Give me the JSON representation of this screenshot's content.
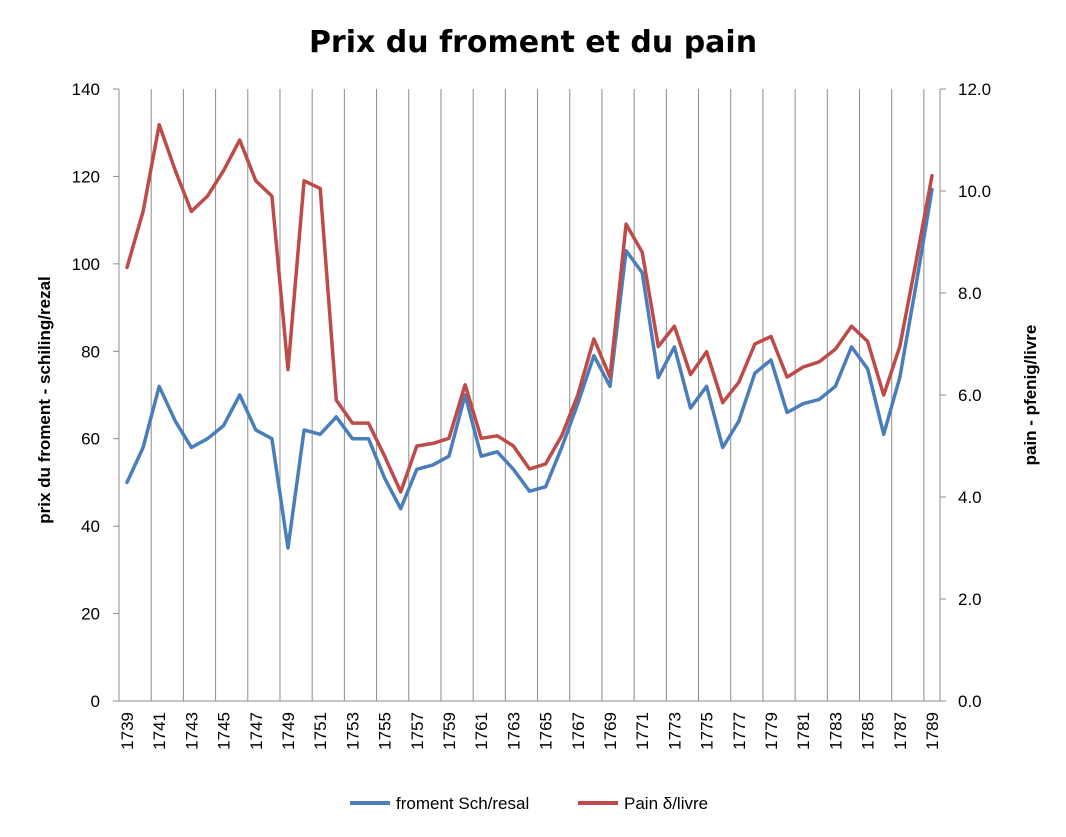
{
  "chart_data": {
    "type": "line",
    "title": "Prix du froment et du pain",
    "ylabel": "prix du froment - schiling/rezal",
    "y2label": "pain - pfenig/livre",
    "xlabel": "",
    "ylim": [
      0,
      140
    ],
    "y2lim": [
      0.0,
      12.0
    ],
    "yticks": [
      "0",
      "20",
      "40",
      "60",
      "80",
      "100",
      "120",
      "140"
    ],
    "y2ticks": [
      "0.0",
      "2.0",
      "4.0",
      "6.0",
      "8.0",
      "10.0",
      "12.0"
    ],
    "grid": "vertical",
    "legend": "bottom",
    "x": [
      1739,
      1740,
      1741,
      1742,
      1743,
      1744,
      1745,
      1746,
      1747,
      1748,
      1749,
      1750,
      1751,
      1752,
      1753,
      1754,
      1755,
      1756,
      1757,
      1758,
      1759,
      1760,
      1761,
      1762,
      1763,
      1764,
      1765,
      1766,
      1767,
      1768,
      1769,
      1770,
      1771,
      1772,
      1773,
      1774,
      1775,
      1776,
      1777,
      1778,
      1779,
      1780,
      1781,
      1782,
      1783,
      1784,
      1785,
      1786,
      1787,
      1788,
      1789
    ],
    "xtick_labels": [
      "1739",
      "1741",
      "1743",
      "1745",
      "1747",
      "1749",
      "1751",
      "1753",
      "1755",
      "1757",
      "1759",
      "1761",
      "1763",
      "1765",
      "1767",
      "1769",
      "1771",
      "1773",
      "1775",
      "1777",
      "1779",
      "1781",
      "1783",
      "1785",
      "1787",
      "1789"
    ],
    "series": [
      {
        "name": "froment Sch/resal",
        "axis": "left",
        "color": "#4a7ebb",
        "values": [
          50,
          58,
          72,
          64,
          58,
          60,
          63,
          70,
          62,
          60,
          35,
          62,
          61,
          65,
          60,
          60,
          51,
          44,
          53,
          54,
          56,
          70,
          56,
          57,
          53,
          48,
          49,
          58,
          68,
          79,
          72,
          103,
          98,
          74,
          81,
          67,
          72,
          58,
          64,
          75,
          78,
          66,
          68,
          69,
          72,
          81,
          76,
          61,
          74,
          95,
          117
        ]
      },
      {
        "name": "Pain δ/livre",
        "axis": "right",
        "color": "#be4b48",
        "values": [
          8.5,
          9.6,
          11.3,
          10.4,
          9.6,
          9.9,
          10.4,
          11.0,
          10.2,
          9.9,
          6.5,
          10.2,
          10.05,
          5.9,
          5.45,
          5.45,
          4.8,
          4.1,
          5.0,
          5.05,
          5.15,
          6.2,
          5.15,
          5.2,
          5.0,
          4.55,
          4.65,
          5.2,
          6.0,
          7.1,
          6.35,
          9.35,
          8.8,
          6.95,
          7.35,
          6.4,
          6.85,
          5.85,
          6.25,
          7.0,
          7.15,
          6.35,
          6.55,
          6.65,
          6.9,
          7.35,
          7.05,
          6.0,
          6.95,
          8.6,
          10.3
        ]
      }
    ]
  }
}
